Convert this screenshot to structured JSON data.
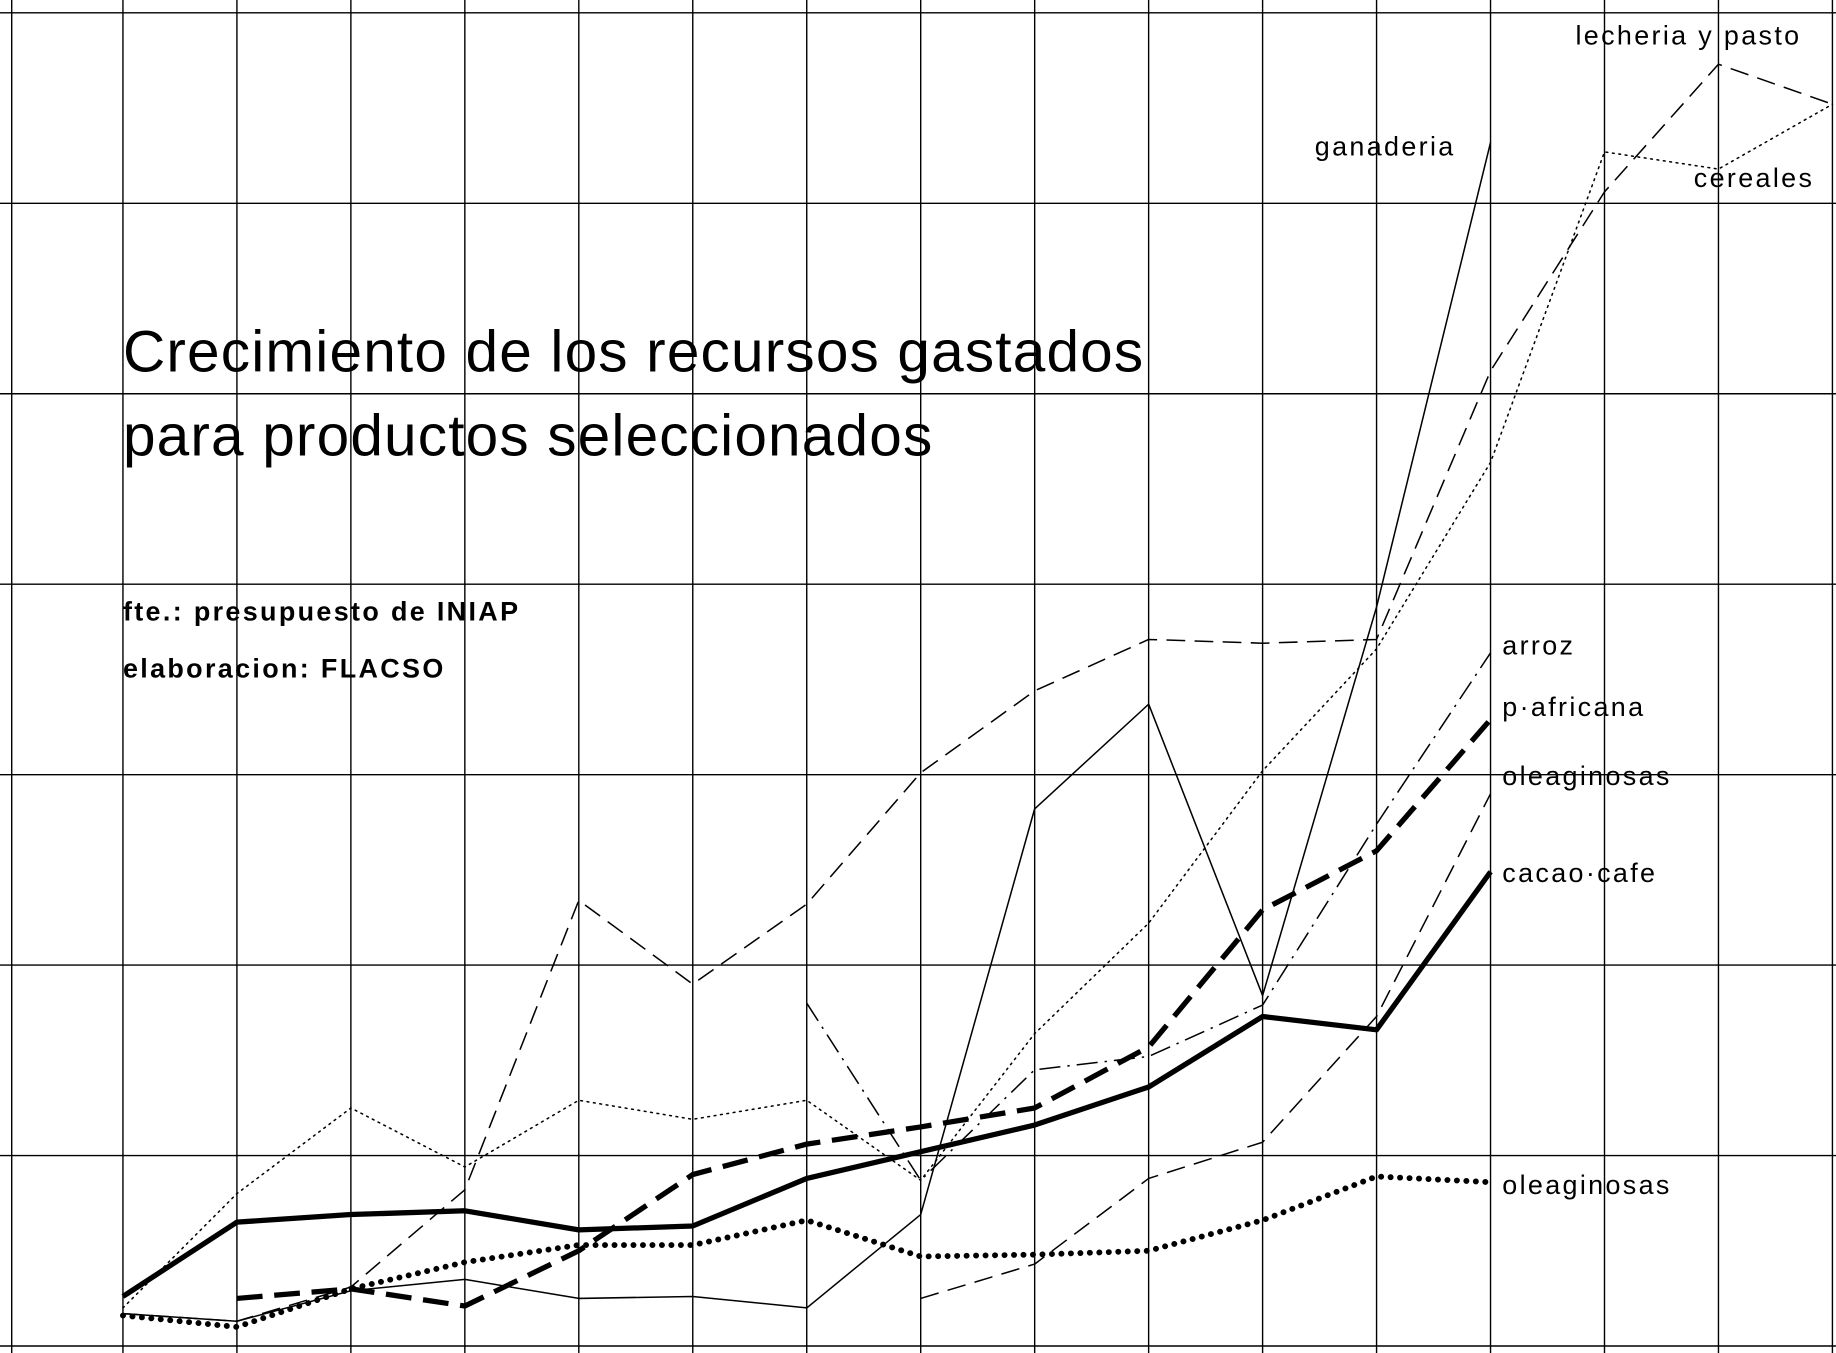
{
  "chart_data": {
    "type": "line",
    "title": [
      "Crecimiento de los recursos gastados",
      "para productos seleccionados"
    ],
    "notes": [
      "fte.: presupuesto de INIAP",
      "elaboracion: FLACSO"
    ],
    "categories": [
      null,
      null,
      null,
      null,
      null,
      null,
      null,
      null,
      null,
      null,
      null,
      null,
      null,
      null,
      null,
      null
    ],
    "ylim": [
      0,
      7
    ],
    "yticks": [
      0,
      1,
      2,
      3,
      4,
      5,
      6,
      7
    ],
    "grid": true,
    "series": [
      {
        "name": "lecheria y pasto",
        "color": "#000000",
        "style": "dashed",
        "weight": "thin",
        "values": [
          0.17,
          0.13,
          0.31,
          0.82,
          2.34,
          1.9,
          2.32,
          3.01,
          3.44,
          3.71,
          3.69,
          3.71,
          5.12,
          6.06,
          6.73,
          6.52
        ]
      },
      {
        "name": "ganaderia",
        "color": "#000000",
        "style": "solid",
        "weight": "thin",
        "values": [
          0.17,
          0.13,
          0.29,
          0.35,
          0.25,
          0.26,
          0.2,
          0.69,
          2.82,
          3.37,
          1.84,
          3.88,
          6.32,
          null,
          null,
          null
        ]
      },
      {
        "name": "cereales",
        "color": "#000000",
        "style": "dotted",
        "weight": "thin",
        "values": [
          0.2,
          0.8,
          1.25,
          0.94,
          1.29,
          1.19,
          1.29,
          0.87,
          1.64,
          2.22,
          3.02,
          3.66,
          4.64,
          6.27,
          6.18,
          6.52
        ]
      },
      {
        "name": "arroz",
        "color": "#000000",
        "style": "dashdot",
        "weight": "thin",
        "values": [
          null,
          null,
          null,
          null,
          null,
          null,
          1.8,
          0.87,
          1.45,
          1.52,
          1.79,
          2.74,
          3.64,
          null,
          null,
          null
        ]
      },
      {
        "name": "p·africana",
        "color": "#000000",
        "style": "dashed",
        "weight": "thick",
        "values": [
          null,
          0.25,
          0.3,
          0.21,
          0.5,
          0.9,
          1.06,
          1.15,
          1.25,
          1.57,
          2.29,
          2.6,
          3.29,
          null,
          null,
          null
        ]
      },
      {
        "name": "oleaginosas",
        "color": "#000000",
        "style": "dashed",
        "weight": "thin",
        "values": [
          null,
          null,
          null,
          null,
          null,
          null,
          null,
          0.25,
          0.43,
          0.88,
          1.07,
          1.73,
          2.9,
          null,
          null,
          null
        ]
      },
      {
        "name": "cacao·cafe",
        "color": "#000000",
        "style": "solid",
        "weight": "thick",
        "values": [
          0.26,
          0.65,
          0.69,
          0.71,
          0.61,
          0.63,
          0.88,
          1.02,
          1.16,
          1.36,
          1.73,
          1.66,
          2.49,
          null,
          null,
          null
        ]
      },
      {
        "name": "oleaginosas",
        "color": "#000000",
        "style": "dotted",
        "weight": "thick",
        "values": [
          0.16,
          0.1,
          0.3,
          0.44,
          0.53,
          0.53,
          0.66,
          0.47,
          0.48,
          0.5,
          0.66,
          0.89,
          0.86,
          null,
          null,
          null
        ]
      }
    ]
  }
}
